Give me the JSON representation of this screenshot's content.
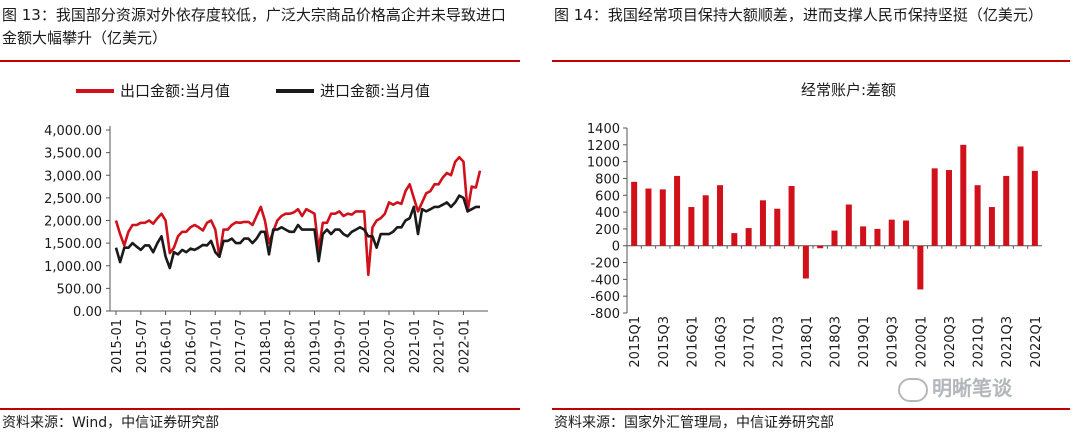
{
  "left": {
    "title": "图 13：我国部分资源对外依存度较低，广泛大宗商品价格高企并未导致进口金额大幅攀升（亿美元）",
    "source": "资料来源：Wind，中信证券研究部"
  },
  "right": {
    "title": "图 14：我国经常项目保持大额顺差，进而支撑人民币保持坚挺（亿美元）",
    "source": "资料来源：国家外汇管理局，中信证券研究部"
  },
  "watermark": "明晰笔谈",
  "colors": {
    "red": "#d0111b",
    "black": "#1a1a1a",
    "rule": "#c00000"
  },
  "chart_data": [
    {
      "type": "line",
      "title": "",
      "xlabel": "",
      "ylabel": "",
      "ylim": [
        0,
        4000
      ],
      "yticks": [
        "4,000.00",
        "3,500.00",
        "3,000.00",
        "2,500.00",
        "2,000.00",
        "1,500.00",
        "1,000.00",
        "500.00",
        "0.00"
      ],
      "x_tick_labels": [
        "2015-01",
        "2015-07",
        "2016-01",
        "2016-07",
        "2017-01",
        "2017-07",
        "2018-01",
        "2018-07",
        "2019-01",
        "2019-07",
        "2020-01",
        "2020-07",
        "2021-01",
        "2021-07",
        "2022-01"
      ],
      "legend": "top",
      "series": [
        {
          "name": "出口金额:当月值",
          "color": "#d0111b",
          "values": [
            2000,
            1700,
            1450,
            1750,
            1900,
            1900,
            1950,
            1950,
            2000,
            1930,
            2050,
            2150,
            2000,
            1280,
            1400,
            1650,
            1750,
            1750,
            1850,
            1900,
            1850,
            1780,
            1950,
            2000,
            1800,
            1200,
            1800,
            1800,
            1900,
            1960,
            1950,
            1970,
            1970,
            1900,
            2100,
            2300,
            2000,
            1500,
            1750,
            2000,
            2100,
            2150,
            2150,
            2180,
            2250,
            2100,
            2250,
            2200,
            2150,
            1350,
            1950,
            1950,
            2150,
            2150,
            2200,
            2100,
            2150,
            2130,
            2200,
            2200,
            2200,
            800,
            1850,
            2000,
            2050,
            2150,
            2400,
            2350,
            2400,
            2370,
            2650,
            2800,
            2500,
            2200,
            2400,
            2600,
            2650,
            2800,
            2800,
            2950,
            3050,
            3000,
            3300,
            3400,
            3300,
            2200,
            2750,
            2730,
            3100
          ]
        },
        {
          "name": "进口金额:当月值",
          "color": "#1a1a1a",
          "values": [
            1400,
            1080,
            1400,
            1400,
            1500,
            1420,
            1350,
            1450,
            1450,
            1300,
            1500,
            1650,
            1200,
            950,
            1300,
            1250,
            1350,
            1300,
            1380,
            1350,
            1400,
            1460,
            1450,
            1550,
            1300,
            1200,
            1550,
            1550,
            1600,
            1500,
            1500,
            1600,
            1600,
            1500,
            1600,
            1750,
            1750,
            1250,
            1800,
            1800,
            1850,
            1800,
            1750,
            1750,
            1900,
            1800,
            1800,
            1800,
            1800,
            1100,
            1700,
            1800,
            1700,
            1800,
            1800,
            1700,
            1650,
            1750,
            1800,
            1850,
            1800,
            1650,
            1650,
            1400,
            1700,
            1700,
            1700,
            1750,
            1850,
            1850,
            2000,
            2050,
            2300,
            1700,
            2250,
            2200,
            2250,
            2300,
            2300,
            2350,
            2400,
            2300,
            2400,
            2550,
            2500,
            2200,
            2250,
            2300,
            2300
          ]
        }
      ]
    },
    {
      "type": "bar",
      "title": "经常账户:差额",
      "xlabel": "",
      "ylabel": "",
      "ylim": [
        -800,
        1400
      ],
      "yticks": [
        1400,
        1200,
        1000,
        800,
        600,
        400,
        200,
        0,
        -200,
        -400,
        -600,
        -800
      ],
      "categories": [
        "2015Q1",
        "2015Q2",
        "2015Q3",
        "2015Q4",
        "2016Q1",
        "2016Q2",
        "2016Q3",
        "2016Q4",
        "2017Q1",
        "2017Q2",
        "2017Q3",
        "2017Q4",
        "2018Q1",
        "2018Q2",
        "2018Q3",
        "2018Q4",
        "2019Q1",
        "2019Q2",
        "2019Q3",
        "2019Q4",
        "2020Q1",
        "2020Q2",
        "2020Q3",
        "2020Q4",
        "2021Q1",
        "2021Q2",
        "2021Q3",
        "2021Q4",
        "2022Q1"
      ],
      "x_tick_labels": [
        "2015Q1",
        "2015Q3",
        "2016Q1",
        "2016Q3",
        "2017Q1",
        "2017Q3",
        "2018Q1",
        "2018Q3",
        "2019Q1",
        "2019Q3",
        "2020Q1",
        "2020Q3",
        "2021Q1",
        "2021Q3",
        "2022Q1"
      ],
      "series": [
        {
          "name": "经常账户:差额",
          "color": "#d0111b",
          "values": [
            760,
            680,
            670,
            830,
            460,
            600,
            720,
            150,
            210,
            540,
            440,
            710,
            -390,
            -30,
            180,
            490,
            230,
            200,
            310,
            300,
            -520,
            920,
            900,
            1200,
            720,
            460,
            830,
            1180,
            890
          ]
        }
      ]
    }
  ]
}
